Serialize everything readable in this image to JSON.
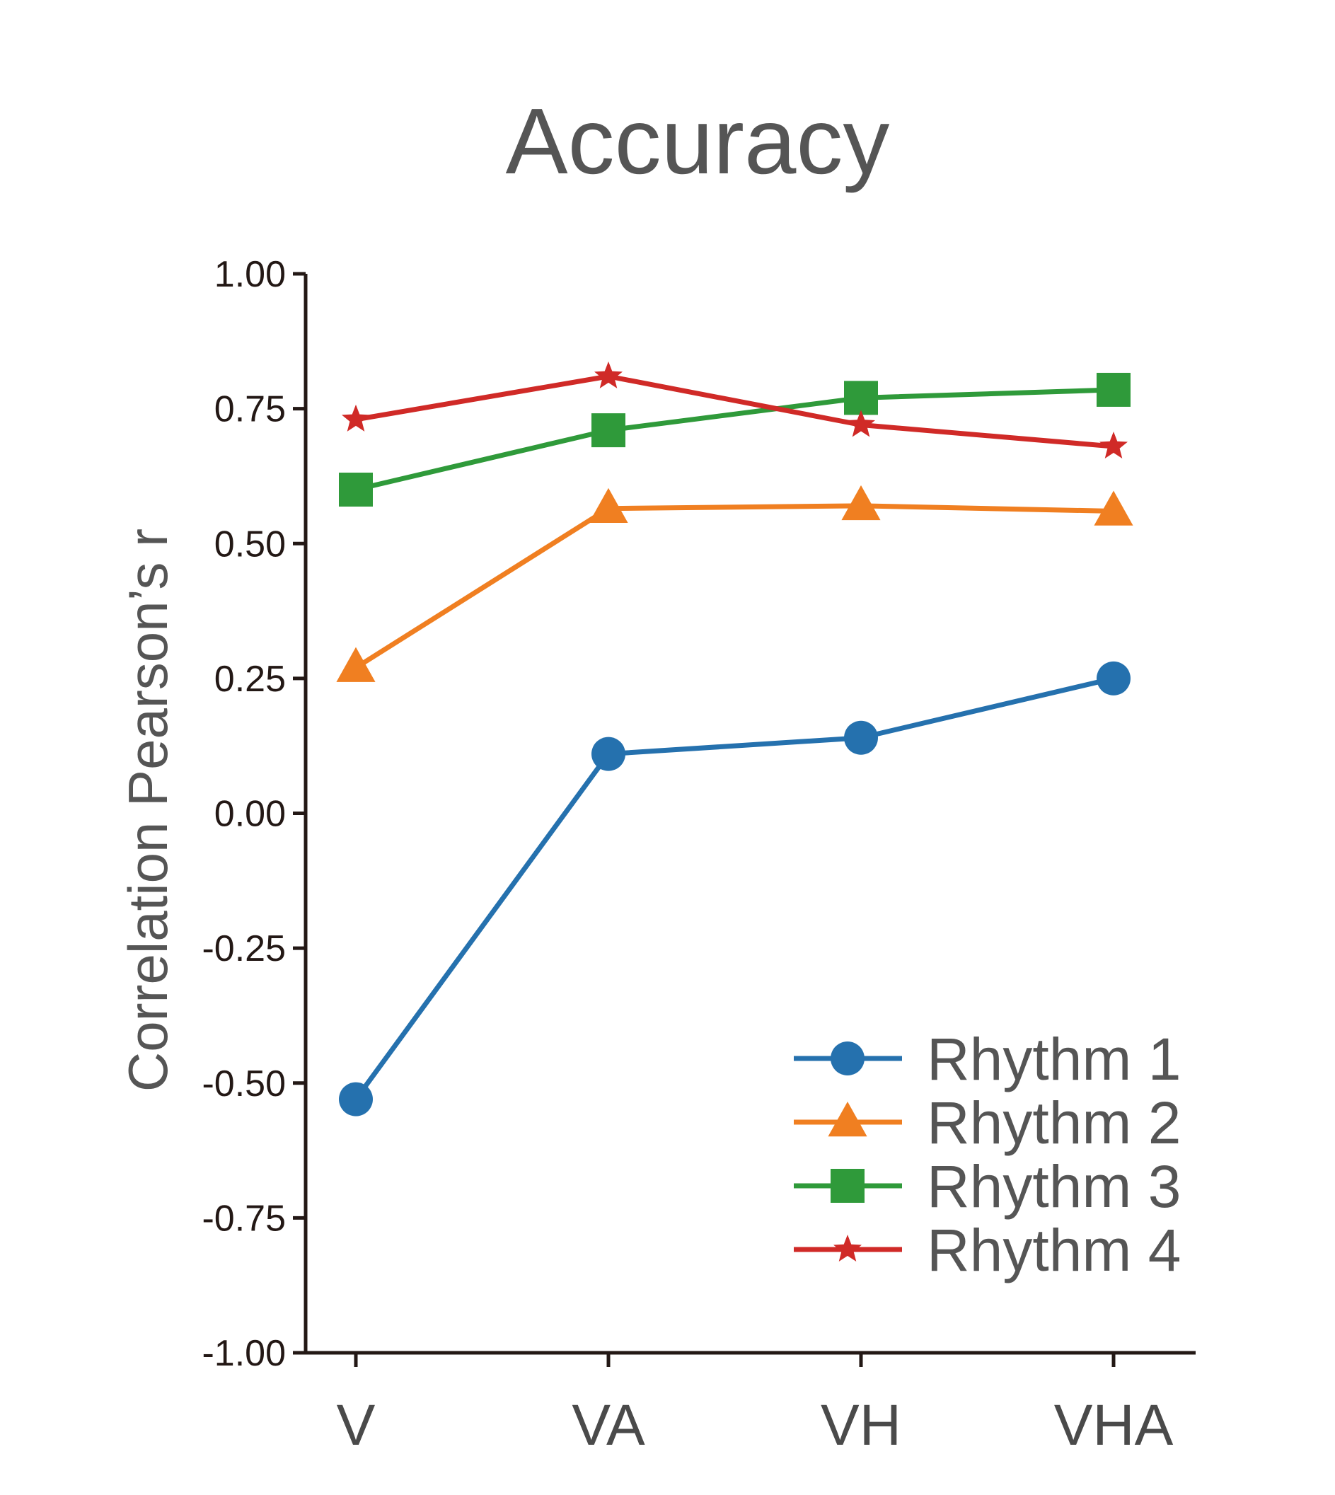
{
  "chart_data": {
    "type": "line",
    "title": "Accuracy",
    "xlabel": "",
    "ylabel": "Correlation Pearson’s r",
    "ylim": [
      -1.0,
      1.0
    ],
    "yticks": [
      "1.00",
      "0.75",
      "0.50",
      "0.25",
      "0.00",
      "-0.25",
      "-0.50",
      "-0.75",
      "-1.00"
    ],
    "ytick_values": [
      1.0,
      0.75,
      0.5,
      0.25,
      0.0,
      -0.25,
      -0.5,
      -0.75,
      -1.0
    ],
    "categories": [
      "V",
      "VA",
      "VH",
      "VHA"
    ],
    "grid": false,
    "legend_position": "bottom-right",
    "series": [
      {
        "name": "Rhythm 1",
        "marker": "circle",
        "color": "#2571ae",
        "values": [
          -0.53,
          0.11,
          0.14,
          0.25
        ]
      },
      {
        "name": "Rhythm 2",
        "marker": "triangle",
        "color": "#f07f21",
        "values": [
          0.27,
          0.565,
          0.57,
          0.56
        ]
      },
      {
        "name": "Rhythm 3",
        "marker": "square",
        "color": "#2f9a3a",
        "values": [
          0.6,
          0.71,
          0.77,
          0.785
        ]
      },
      {
        "name": "Rhythm 4",
        "marker": "star",
        "color": "#d02a27",
        "values": [
          0.73,
          0.81,
          0.72,
          0.68
        ]
      }
    ]
  }
}
